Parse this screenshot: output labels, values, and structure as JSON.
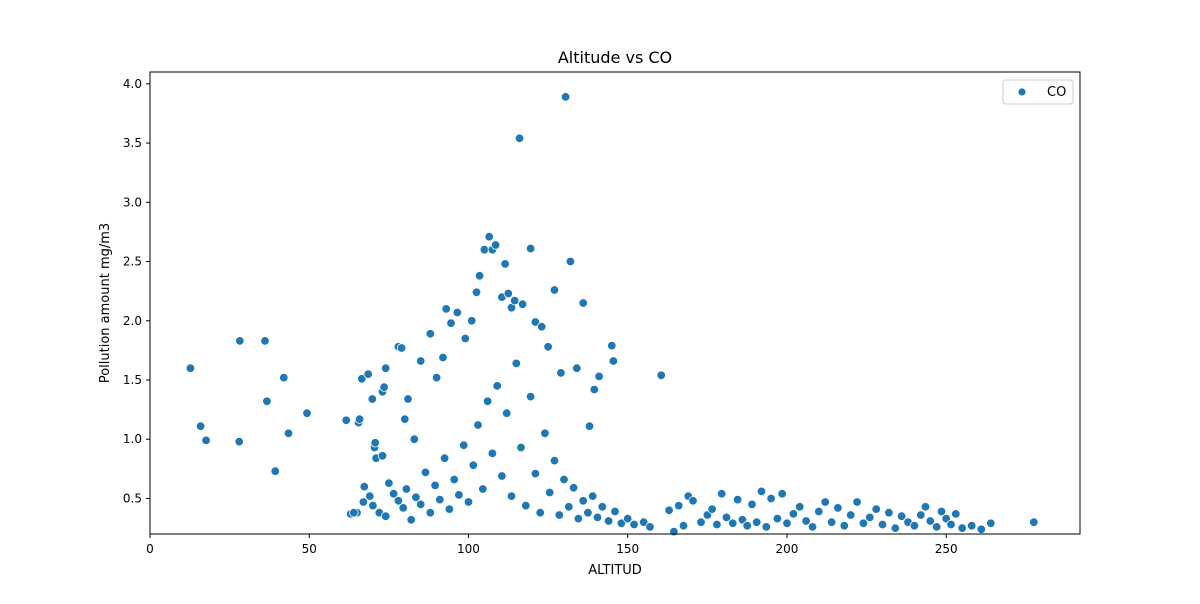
{
  "colors": {
    "point": "#1f77b4",
    "point_edge": "#ffffff",
    "axes": "#000000",
    "legend_border": "#cccccc"
  },
  "chart_data": {
    "type": "scatter",
    "title": "Altitude vs CO",
    "xlabel": "ALTITUD",
    "ylabel": "Pollution amount mg/m3",
    "xlim": [
      0,
      292
    ],
    "ylim": [
      0.2,
      4.1
    ],
    "grid": false,
    "legend_position": "top-right",
    "xticks": [
      0,
      50,
      100,
      150,
      200,
      250
    ],
    "yticks": [
      0.5,
      1.0,
      1.5,
      2.0,
      2.5,
      3.0,
      3.5,
      4.0
    ],
    "xtick_labels": [
      "0",
      "50",
      "100",
      "150",
      "200",
      "250"
    ],
    "ytick_labels": [
      "0.5",
      "1.0",
      "1.5",
      "2.0",
      "2.5",
      "3.0",
      "3.5",
      "4.0"
    ],
    "series": [
      {
        "name": "CO",
        "points": [
          [
            12.7,
            1.6
          ],
          [
            15.9,
            1.11
          ],
          [
            17.6,
            0.99
          ],
          [
            28.0,
            0.98
          ],
          [
            28.2,
            1.83
          ],
          [
            36.1,
            1.83
          ],
          [
            36.7,
            1.32
          ],
          [
            39.3,
            0.73
          ],
          [
            42.0,
            1.52
          ],
          [
            43.5,
            1.05
          ],
          [
            49.3,
            1.22
          ],
          [
            61.6,
            1.16
          ],
          [
            63.0,
            0.37
          ],
          [
            65.0,
            0.38
          ],
          [
            65.5,
            1.14
          ],
          [
            65.8,
            1.17
          ],
          [
            66.5,
            1.51
          ],
          [
            67.3,
            0.6
          ],
          [
            68.5,
            1.55
          ],
          [
            69.8,
            1.34
          ],
          [
            70.5,
            0.93
          ],
          [
            70.7,
            0.97
          ],
          [
            71.0,
            0.84
          ],
          [
            73.0,
            0.86
          ],
          [
            73.0,
            1.4
          ],
          [
            73.5,
            1.44
          ],
          [
            74.0,
            1.6
          ],
          [
            78.0,
            1.78
          ],
          [
            79.0,
            1.77
          ],
          [
            80.0,
            1.17
          ],
          [
            81.0,
            1.34
          ],
          [
            83.0,
            1.0
          ],
          [
            85.0,
            1.66
          ],
          [
            88.0,
            1.89
          ],
          [
            90.0,
            1.52
          ],
          [
            92.0,
            1.69
          ],
          [
            93.0,
            2.1
          ],
          [
            94.5,
            1.98
          ],
          [
            96.5,
            2.07
          ],
          [
            99.0,
            1.85
          ],
          [
            101.0,
            2.0
          ],
          [
            102.5,
            2.24
          ],
          [
            103.5,
            2.38
          ],
          [
            105.0,
            2.6
          ],
          [
            106.5,
            2.71
          ],
          [
            107.5,
            2.6
          ],
          [
            108.5,
            2.64
          ],
          [
            110.5,
            2.2
          ],
          [
            111.5,
            2.48
          ],
          [
            112.5,
            2.23
          ],
          [
            113.5,
            2.11
          ],
          [
            114.5,
            2.17
          ],
          [
            116.0,
            3.54
          ],
          [
            117.0,
            2.14
          ],
          [
            119.5,
            2.61
          ],
          [
            121.0,
            1.99
          ],
          [
            123.0,
            1.95
          ],
          [
            125.0,
            1.78
          ],
          [
            127.0,
            2.26
          ],
          [
            129.0,
            1.56
          ],
          [
            130.5,
            3.89
          ],
          [
            132.0,
            2.5
          ],
          [
            134.0,
            1.6
          ],
          [
            136.0,
            2.15
          ],
          [
            138.0,
            1.11
          ],
          [
            139.5,
            1.42
          ],
          [
            141.0,
            1.53
          ],
          [
            145.0,
            1.79
          ],
          [
            145.5,
            1.66
          ],
          [
            160.5,
            1.54
          ],
          [
            64.0,
            0.38
          ],
          [
            67.0,
            0.47
          ],
          [
            69.0,
            0.52
          ],
          [
            70.0,
            0.44
          ],
          [
            72.0,
            0.38
          ],
          [
            74.0,
            0.35
          ],
          [
            75.0,
            0.63
          ],
          [
            76.5,
            0.54
          ],
          [
            78.0,
            0.48
          ],
          [
            79.5,
            0.42
          ],
          [
            80.5,
            0.58
          ],
          [
            82.0,
            0.32
          ],
          [
            83.5,
            0.51
          ],
          [
            85.0,
            0.45
          ],
          [
            86.5,
            0.72
          ],
          [
            88.0,
            0.38
          ],
          [
            89.5,
            0.61
          ],
          [
            91.0,
            0.49
          ],
          [
            92.5,
            0.84
          ],
          [
            94.0,
            0.41
          ],
          [
            95.5,
            0.66
          ],
          [
            97.0,
            0.53
          ],
          [
            98.5,
            0.95
          ],
          [
            100.0,
            0.47
          ],
          [
            101.5,
            0.78
          ],
          [
            103.0,
            1.12
          ],
          [
            104.5,
            0.58
          ],
          [
            106.0,
            1.32
          ],
          [
            107.5,
            0.88
          ],
          [
            109.0,
            1.45
          ],
          [
            110.5,
            0.69
          ],
          [
            112.0,
            1.22
          ],
          [
            113.5,
            0.52
          ],
          [
            115.0,
            1.64
          ],
          [
            116.5,
            0.93
          ],
          [
            118.0,
            0.44
          ],
          [
            119.5,
            1.36
          ],
          [
            121.0,
            0.71
          ],
          [
            122.5,
            0.38
          ],
          [
            124.0,
            1.05
          ],
          [
            125.5,
            0.55
          ],
          [
            127.0,
            0.82
          ],
          [
            128.5,
            0.36
          ],
          [
            130.0,
            0.66
          ],
          [
            131.5,
            0.43
          ],
          [
            133.0,
            0.59
          ],
          [
            134.5,
            0.33
          ],
          [
            136.0,
            0.48
          ],
          [
            137.5,
            0.38
          ],
          [
            139.0,
            0.52
          ],
          [
            140.5,
            0.34
          ],
          [
            142.0,
            0.43
          ],
          [
            144.0,
            0.31
          ],
          [
            146.0,
            0.39
          ],
          [
            148.0,
            0.29
          ],
          [
            150.0,
            0.33
          ],
          [
            152.0,
            0.28
          ],
          [
            155.0,
            0.3
          ],
          [
            157.0,
            0.26
          ],
          [
            163.0,
            0.4
          ],
          [
            164.5,
            0.22
          ],
          [
            166.0,
            0.44
          ],
          [
            167.5,
            0.27
          ],
          [
            169.0,
            0.52
          ],
          [
            170.5,
            0.48
          ],
          [
            173.0,
            0.3
          ],
          [
            175.0,
            0.36
          ],
          [
            176.5,
            0.41
          ],
          [
            178.0,
            0.28
          ],
          [
            179.5,
            0.54
          ],
          [
            181.0,
            0.34
          ],
          [
            183.0,
            0.29
          ],
          [
            184.5,
            0.49
          ],
          [
            186.0,
            0.32
          ],
          [
            187.5,
            0.27
          ],
          [
            189.0,
            0.45
          ],
          [
            190.5,
            0.3
          ],
          [
            192.0,
            0.56
          ],
          [
            193.5,
            0.26
          ],
          [
            195.0,
            0.5
          ],
          [
            197.0,
            0.33
          ],
          [
            198.5,
            0.54
          ],
          [
            200.0,
            0.29
          ],
          [
            202.0,
            0.37
          ],
          [
            204.0,
            0.43
          ],
          [
            206.0,
            0.31
          ],
          [
            208.0,
            0.26
          ],
          [
            210.0,
            0.39
          ],
          [
            212.0,
            0.47
          ],
          [
            214.0,
            0.3
          ],
          [
            216.0,
            0.42
          ],
          [
            218.0,
            0.27
          ],
          [
            220.0,
            0.36
          ],
          [
            222.0,
            0.47
          ],
          [
            224.0,
            0.29
          ],
          [
            226.0,
            0.34
          ],
          [
            228.0,
            0.41
          ],
          [
            230.0,
            0.28
          ],
          [
            232.0,
            0.38
          ],
          [
            234.0,
            0.25
          ],
          [
            236.0,
            0.35
          ],
          [
            238.0,
            0.3
          ],
          [
            240.0,
            0.27
          ],
          [
            242.0,
            0.36
          ],
          [
            243.5,
            0.43
          ],
          [
            245.0,
            0.31
          ],
          [
            247.0,
            0.26
          ],
          [
            248.5,
            0.39
          ],
          [
            250.0,
            0.33
          ],
          [
            251.5,
            0.28
          ],
          [
            253.0,
            0.37
          ],
          [
            255.0,
            0.25
          ],
          [
            258.0,
            0.27
          ],
          [
            261.0,
            0.24
          ],
          [
            264.0,
            0.29
          ],
          [
            277.5,
            0.3
          ]
        ]
      }
    ]
  }
}
